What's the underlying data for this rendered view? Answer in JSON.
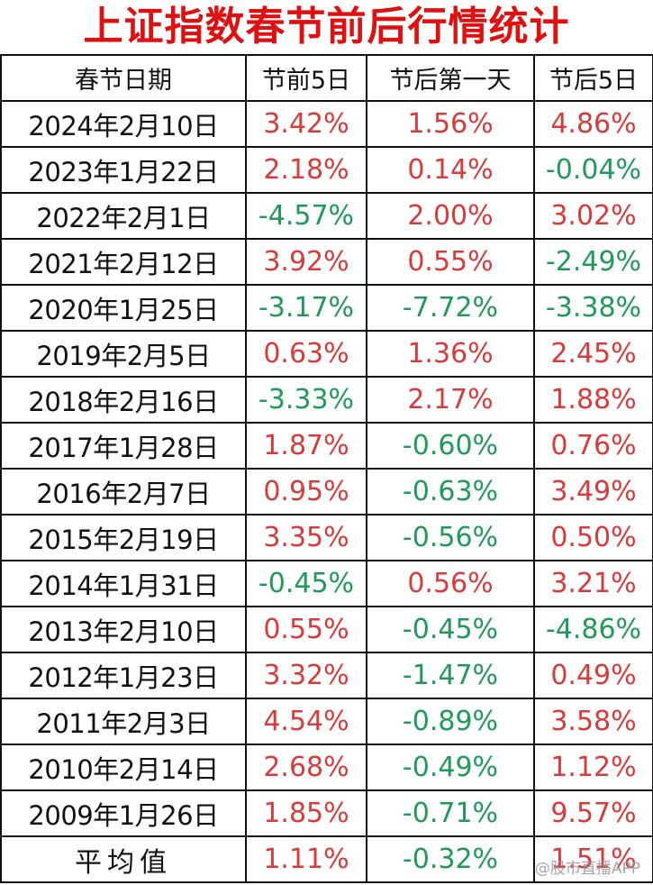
{
  "title": "上证指数春节前后行情统计",
  "headers": [
    "春节日期",
    "节前5日",
    "节后第一天",
    "节后5日"
  ],
  "rows": [
    {
      "date": "2024年2月10日",
      "before5": "3.42%",
      "after1": "1.56%",
      "after5": "4.86%"
    },
    {
      "date": "2023年1月22日",
      "before5": "2.18%",
      "after1": "0.14%",
      "after5": "-0.04%"
    },
    {
      "date": "2022年2月1日",
      "before5": "-4.57%",
      "after1": "2.00%",
      "after5": "3.02%"
    },
    {
      "date": "2021年2月12日",
      "before5": "3.92%",
      "after1": "0.55%",
      "after5": "-2.49%"
    },
    {
      "date": "2020年1月25日",
      "before5": "-3.17%",
      "after1": "-7.72%",
      "after5": "-3.38%"
    },
    {
      "date": "2019年2月5日",
      "before5": "0.63%",
      "after1": "1.36%",
      "after5": "2.45%"
    },
    {
      "date": "2018年2月16日",
      "before5": "-3.33%",
      "after1": "2.17%",
      "after5": "1.88%"
    },
    {
      "date": "2017年1月28日",
      "before5": "1.87%",
      "after1": "-0.60%",
      "after5": "0.76%"
    },
    {
      "date": "2016年2月7日",
      "before5": "0.95%",
      "after1": "-0.63%",
      "after5": "3.49%"
    },
    {
      "date": "2015年2月19日",
      "before5": "3.35%",
      "after1": "-0.56%",
      "after5": "0.50%"
    },
    {
      "date": "2014年1月31日",
      "before5": "-0.45%",
      "after1": "0.56%",
      "after5": "3.21%"
    },
    {
      "date": "2013年2月10日",
      "before5": "0.55%",
      "after1": "-0.45%",
      "after5": "-4.86%"
    },
    {
      "date": "2012年1月23日",
      "before5": "3.32%",
      "after1": "-1.47%",
      "after5": "0.49%"
    },
    {
      "date": "2011年2月3日",
      "before5": "4.54%",
      "after1": "-0.89%",
      "after5": "3.58%"
    },
    {
      "date": "2010年2月14日",
      "before5": "2.68%",
      "after1": "-0.49%",
      "after5": "1.12%"
    },
    {
      "date": "2009年1月26日",
      "before5": "1.85%",
      "after1": "-0.71%",
      "after5": "9.57%"
    }
  ],
  "average": {
    "label": "平均值",
    "before5": "1.11%",
    "after1": "-0.32%",
    "after5": "1.51%"
  },
  "watermark": "@股市直播APP",
  "colors": {
    "title": "#e01010",
    "positive": "#d93a3a",
    "negative": "#1f9a58"
  }
}
